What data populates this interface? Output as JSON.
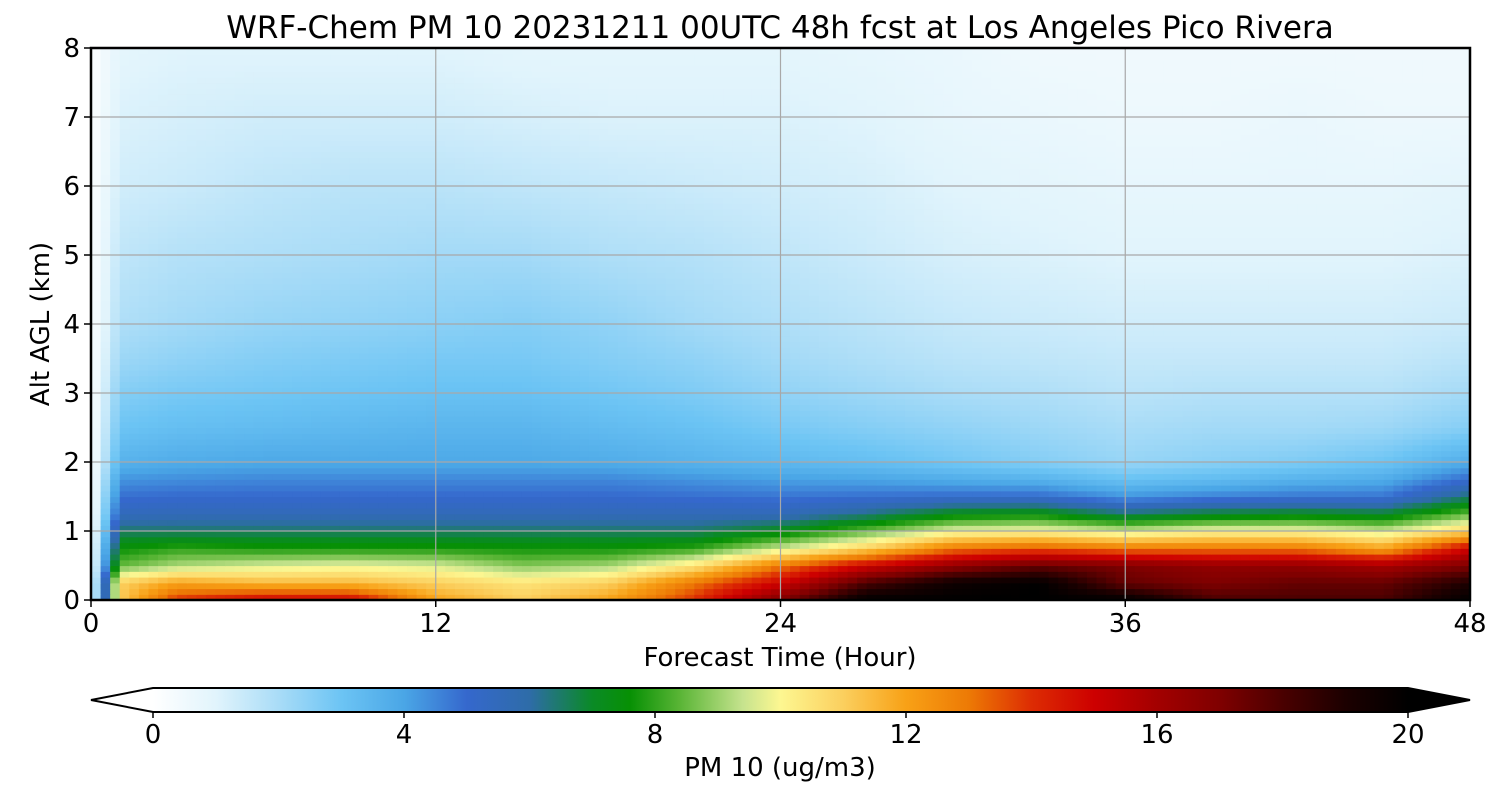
{
  "chart_data": {
    "type": "heatmap",
    "title": "WRF-Chem PM 10  20231211 00UTC 48h fcst at Los Angeles Pico Rivera",
    "xlabel": "Forecast Time (Hour)",
    "ylabel": "Alt AGL (km)",
    "xlim": [
      0,
      48
    ],
    "ylim": [
      0,
      8
    ],
    "x_ticks": [
      "0",
      "12",
      "24",
      "36",
      "48"
    ],
    "y_ticks": [
      "0",
      "1",
      "2",
      "3",
      "4",
      "5",
      "6",
      "7",
      "8"
    ],
    "grid": true,
    "colorbar": {
      "label": "PM 10  (ug/m3)",
      "range": [
        0,
        20
      ],
      "ticks": [
        "0",
        "4",
        "8",
        "12",
        "16",
        "20"
      ],
      "extend": "both",
      "under_color": "#ffffff",
      "over_color": "#000000",
      "stops": [
        {
          "v": 0,
          "color": "#ffffff"
        },
        {
          "v": 1,
          "color": "#e1f4fc"
        },
        {
          "v": 2,
          "color": "#a9dcf7"
        },
        {
          "v": 3,
          "color": "#6cc4f4"
        },
        {
          "v": 4,
          "color": "#4aa6e6"
        },
        {
          "v": 5,
          "color": "#3568cd"
        },
        {
          "v": 6,
          "color": "#2e6ca8"
        },
        {
          "v": 7,
          "color": "#0a8a26"
        },
        {
          "v": 7.6,
          "color": "#079004"
        },
        {
          "v": 8.4,
          "color": "#5ab536"
        },
        {
          "v": 9.4,
          "color": "#c6e38e"
        },
        {
          "v": 10,
          "color": "#fdf791"
        },
        {
          "v": 11,
          "color": "#fbcf5e"
        },
        {
          "v": 12,
          "color": "#f8a116"
        },
        {
          "v": 13,
          "color": "#ed7a05"
        },
        {
          "v": 14,
          "color": "#dd2c03"
        },
        {
          "v": 15,
          "color": "#cd0000"
        },
        {
          "v": 16,
          "color": "#a30000"
        },
        {
          "v": 17,
          "color": "#7f0000"
        },
        {
          "v": 18,
          "color": "#4a0000"
        },
        {
          "v": 19,
          "color": "#1c0000"
        },
        {
          "v": 20,
          "color": "#000000"
        }
      ]
    },
    "altitude_levels_km": [
      0,
      0.25,
      0.5,
      0.75,
      1,
      1.25,
      1.5,
      1.75,
      2,
      2.5,
      3,
      3.5,
      4,
      5,
      6,
      7,
      8
    ],
    "times_hour": [
      0,
      1,
      3,
      6,
      9,
      12,
      15,
      18,
      21,
      24,
      27,
      30,
      33,
      36,
      39,
      42,
      45,
      48
    ],
    "values": [
      [
        0.2,
        11,
        14,
        15,
        15,
        12,
        11,
        12,
        14,
        17,
        20,
        20,
        20,
        20,
        18,
        18,
        18,
        20
      ],
      [
        0.2,
        11,
        12,
        11.5,
        11.5,
        11,
        10.5,
        11,
        13,
        15,
        18,
        19.5,
        20,
        17.5,
        17,
        17.5,
        17.5,
        19
      ],
      [
        0.1,
        8.5,
        9.2,
        9.6,
        9.8,
        9.6,
        8.8,
        9.1,
        10.5,
        13,
        15,
        16.5,
        17.5,
        17,
        16.5,
        16.5,
        16,
        17
      ],
      [
        0.1,
        7.6,
        8,
        7.8,
        7.8,
        7.8,
        7.7,
        7.7,
        8,
        9.5,
        11,
        13,
        13.5,
        13,
        13,
        13,
        12,
        15
      ],
      [
        0.1,
        6.5,
        6.5,
        6.5,
        6.5,
        6.5,
        6.5,
        6.5,
        6.5,
        7.2,
        8.5,
        9.8,
        10,
        9.5,
        10,
        10,
        9.5,
        11
      ],
      [
        0.1,
        5.5,
        5.6,
        5.6,
        5.6,
        5.6,
        5.6,
        5.6,
        5.6,
        5.6,
        6.3,
        7.3,
        7.5,
        6.5,
        7,
        7.2,
        7,
        8.5
      ],
      [
        0.1,
        4.9,
        5,
        5,
        5,
        5,
        5,
        5,
        4.9,
        4.8,
        4.9,
        5,
        5,
        4.3,
        4.6,
        4.8,
        4.8,
        6.5
      ],
      [
        0.1,
        4.3,
        4.4,
        4.5,
        4.5,
        4.5,
        4.5,
        4.5,
        4.3,
        4.1,
        4,
        3.8,
        3.6,
        3.1,
        3.3,
        3.6,
        3.8,
        5
      ],
      [
        0.1,
        3.6,
        3.8,
        3.9,
        3.9,
        3.9,
        3.9,
        3.8,
        3.6,
        3.4,
        3.2,
        2.9,
        2.6,
        2.3,
        2.5,
        2.7,
        3,
        3.8
      ],
      [
        0.1,
        3,
        3.2,
        3.3,
        3.4,
        3.5,
        3.5,
        3.3,
        3.1,
        2.8,
        2.6,
        2.4,
        2.2,
        2,
        2.1,
        2.1,
        2.2,
        2.6
      ],
      [
        0.1,
        2.6,
        2.8,
        2.9,
        3,
        3.1,
        3.1,
        2.9,
        2.7,
        2.4,
        2.2,
        2,
        1.9,
        1.7,
        1.8,
        1.8,
        1.8,
        2.1
      ],
      [
        0.1,
        2.2,
        2.4,
        2.6,
        2.7,
        2.8,
        2.8,
        2.6,
        2.4,
        2.1,
        1.9,
        1.7,
        1.6,
        1.5,
        1.5,
        1.5,
        1.5,
        1.7
      ],
      [
        0.1,
        1.9,
        2.1,
        2.3,
        2.4,
        2.5,
        2.6,
        2.4,
        2.1,
        1.9,
        1.7,
        1.5,
        1.4,
        1.3,
        1.3,
        1.3,
        1.3,
        1.4
      ],
      [
        0.1,
        1.6,
        1.8,
        1.9,
        2,
        2.1,
        2.1,
        1.9,
        1.8,
        1.6,
        1.4,
        1.2,
        1.1,
        1,
        1,
        1,
        1,
        1.1
      ],
      [
        0.1,
        1.3,
        1.4,
        1.6,
        1.7,
        1.7,
        1.6,
        1.5,
        1.4,
        1.3,
        1.2,
        1,
        0.9,
        0.8,
        0.8,
        0.8,
        0.8,
        0.9
      ],
      [
        0.1,
        1.1,
        1.2,
        1.3,
        1.3,
        1.3,
        1.2,
        1.1,
        1.1,
        1.1,
        1,
        0.8,
        0.7,
        0.6,
        0.6,
        0.7,
        0.6,
        0.6
      ],
      [
        0.1,
        0.9,
        1,
        1,
        1,
        1,
        0.9,
        0.9,
        0.9,
        0.9,
        0.8,
        0.7,
        0.5,
        0.5,
        0.5,
        0.5,
        0.5,
        0.5
      ]
    ]
  }
}
